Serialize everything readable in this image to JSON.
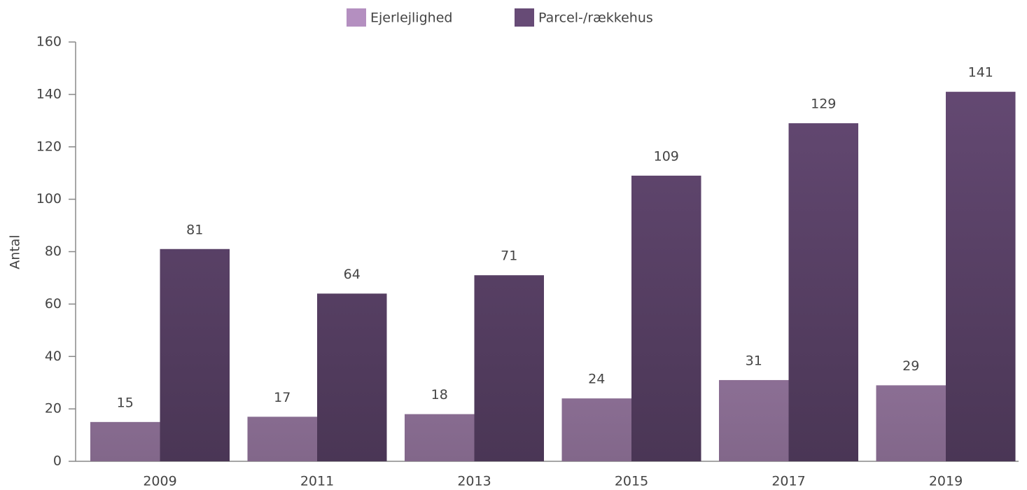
{
  "chart_data": {
    "type": "bar",
    "y_label": "Antal",
    "categories": [
      "2009",
      "2011",
      "2013",
      "2015",
      "2017",
      "2019"
    ],
    "series": [
      {
        "name": "Ejerlejlighed",
        "color": "#b48fc0",
        "values": [
          15,
          17,
          18,
          24,
          31,
          29
        ]
      },
      {
        "name": "Parcel-/rækkehus",
        "color": "#674b76",
        "values": [
          81,
          64,
          71,
          109,
          129,
          141
        ]
      }
    ],
    "ylim": [
      0,
      160
    ],
    "yticks": [
      0,
      20,
      40,
      60,
      80,
      100,
      120,
      140,
      160
    ],
    "legend": "top"
  }
}
